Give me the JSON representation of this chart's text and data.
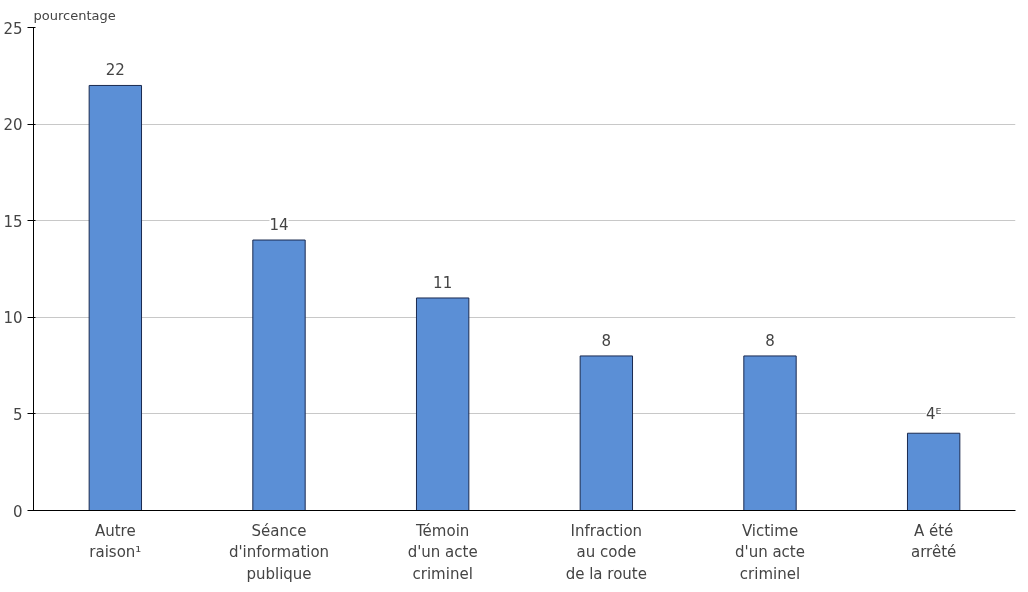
{
  "chart_data": {
    "type": "bar",
    "ylabel": "pourcentage",
    "categories": [
      "Autre\nraison¹",
      "Séance\nd'information\npublique",
      "Témoin\nd'un acte\ncriminel",
      "Infraction\nau code\nde la route",
      "Victime\nd'un acte\ncriminel",
      "A été\narrêté"
    ],
    "values": [
      22,
      14,
      11,
      8,
      8,
      4
    ],
    "value_labels": [
      "22",
      "14",
      "11",
      "8",
      "8",
      "4ᴱ"
    ],
    "color": "#5b8fd6",
    "ylim": [
      0,
      25
    ],
    "yticks": [
      0,
      5,
      10,
      15,
      20,
      25
    ],
    "grid": "y"
  }
}
